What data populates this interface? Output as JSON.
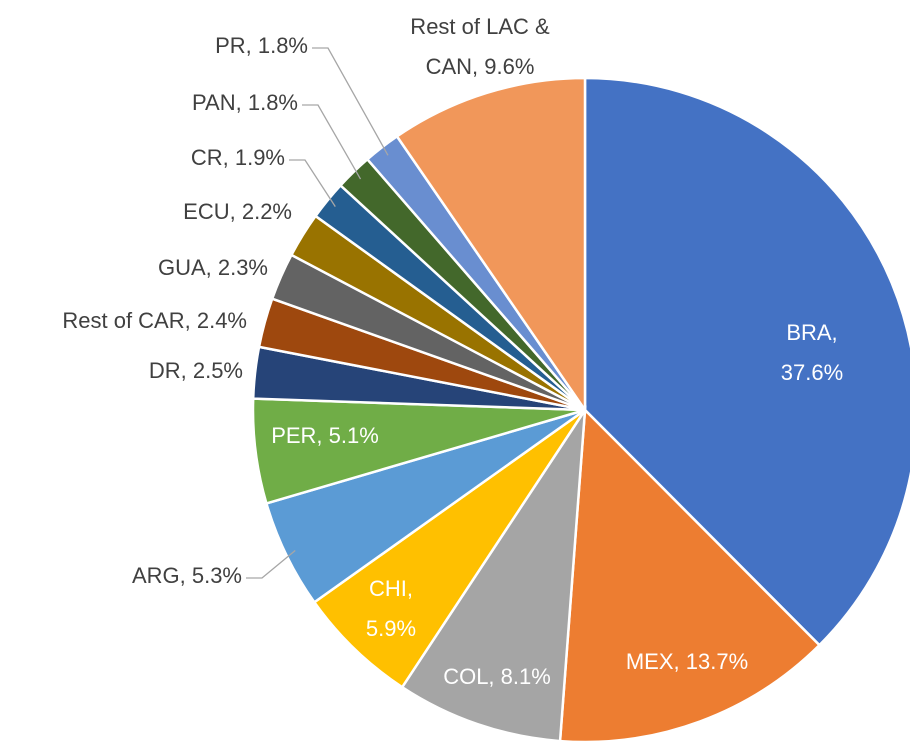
{
  "chart_data": {
    "type": "pie",
    "categories": [
      "BRA",
      "MEX",
      "COL",
      "CHI",
      "ARG",
      "PER",
      "DR",
      "Rest of CAR",
      "GUA",
      "ECU",
      "CR",
      "PAN",
      "PR",
      "Rest of LAC & CAN"
    ],
    "values": [
      37.6,
      13.7,
      8.1,
      5.9,
      5.3,
      5.1,
      2.5,
      2.4,
      2.3,
      2.2,
      1.9,
      1.8,
      1.8,
      9.6
    ],
    "value_labels": [
      "BRA, 37.6%",
      "MEX, 13.7%",
      "COL, 8.1%",
      "CHI,\n5.9%",
      "ARG, 5.3%",
      "PER, 5.1%",
      "DR, 2.5%",
      "Rest of CAR, 2.4%",
      "GUA, 2.3%",
      "ECU, 2.2%",
      "CR, 1.9%",
      "PAN, 1.8%",
      "PR, 1.8%",
      "Rest of LAC &\nCAN, 9.6%"
    ],
    "colors": [
      "#4472c4",
      "#ed7d31",
      "#a5a5a5",
      "#ffc000",
      "#5b9bd5",
      "#70ad47",
      "#264478",
      "#9e480e",
      "#636363",
      "#997300",
      "#255e91",
      "#43682b",
      "#698ed0",
      "#f1975a"
    ]
  }
}
